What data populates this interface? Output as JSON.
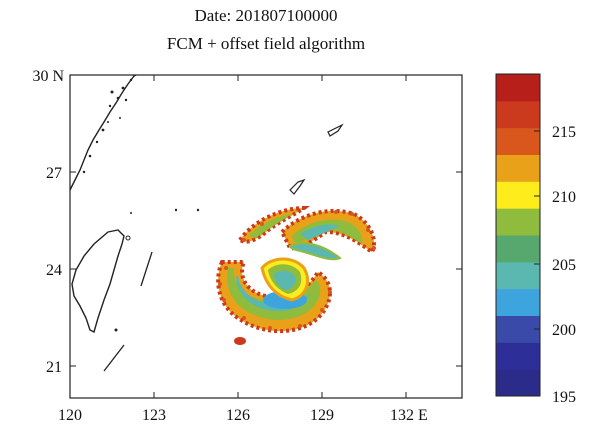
{
  "title_line1": "Date: 201807100000",
  "title_line2": "FCM + offset field algorithm",
  "map": {
    "x_ticks": [
      "120",
      "123",
      "126",
      "129",
      "132 E"
    ],
    "y_ticks": [
      "30 N",
      "27",
      "24",
      "21"
    ]
  },
  "colorbar": {
    "tick_labels": [
      "215",
      "210",
      "205",
      "200",
      "195"
    ],
    "range": [
      194,
      219
    ],
    "colors": [
      "#2b2c8a",
      "#2d2e98",
      "#3a4aa8",
      "#3ea4de",
      "#5ab8b0",
      "#56a86e",
      "#8fbc3c",
      "#ffec1c",
      "#e9a11a",
      "#d9561c",
      "#cb3a1c",
      "#b61f1a"
    ]
  },
  "chart_data": {
    "type": "heatmap",
    "title": "Date: 201807100000 / FCM + offset field algorithm",
    "xlabel": "",
    "ylabel": "",
    "xlim": [
      120,
      134
    ],
    "ylim": [
      20,
      30
    ],
    "colorbar_range": [
      194,
      219
    ],
    "description_fields": {
      "typhoon_center_lon": 128.0,
      "typhoon_center_lat": 23.0,
      "min_value_core": 203,
      "max_value_edge": 218
    }
  }
}
